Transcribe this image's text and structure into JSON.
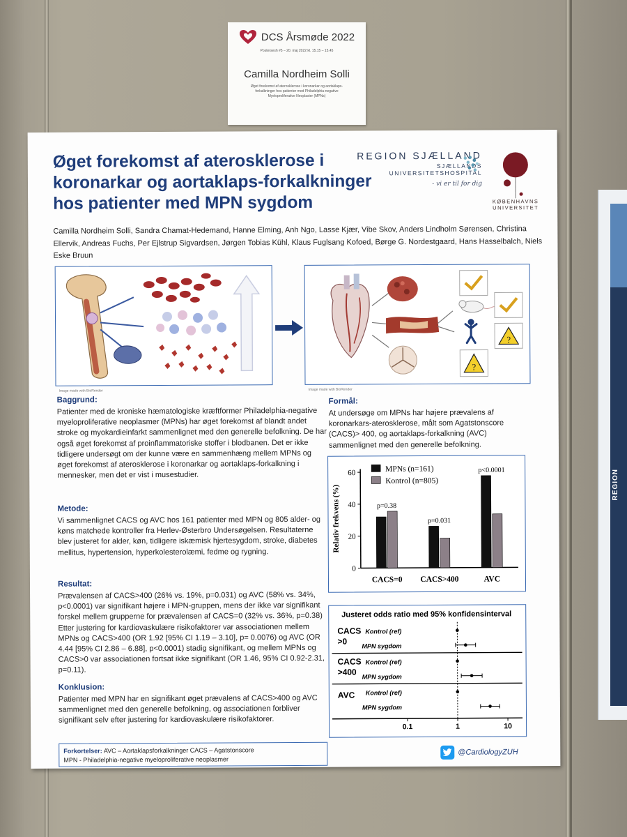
{
  "card": {
    "title": "DCS Årsmøde 2022",
    "subtitle": "Postersesh #5 – 20. maj 2022 kl. 15.15 – 15.45",
    "name": "Camilla Nordheim Solli",
    "desc": "Øget forekomst af aterosklerose i koronarkar og aortaklaps-forkalkninger hos patienter med Philadelphia-negative Myeloproliferative Neoplasier (MPNs)"
  },
  "side_poster": {
    "label": "REGION"
  },
  "poster": {
    "title": "Øget forekomst af aterosklerose i koronarkar og aortaklaps-forkalkninger hos patienter med MPN sygdom",
    "authors": "Camilla Nordheim Solli, Sandra Chamat-Hedemand, Hanne Elming, Anh Ngo, Lasse Kjær, Vibe Skov, Anders Lindholm Sørensen, Christina Ellervik, Andreas Fuchs, Per Ejlstrup Sigvardsen,   Jørgen Tobias Kühl, Klaus Fuglsang Kofoed, Børge G. Nordestgaard, Hans Hasselbalch, Niels Eske Bruun",
    "logo_region": "REGION SJÆLLAND",
    "logo_hospital": "SJÆLLANDS UNIVERSITETSHOSPITAL",
    "logo_tagline": "- vi er til for dig",
    "logo_ku_1": "KØBENHAVNS",
    "logo_ku_2": "UNIVERSITET",
    "fig_caption_1": "Image made with BioRender",
    "fig_caption_2": "Image made with BioRender",
    "baggrund_h": "Baggrund:",
    "baggrund_t": "Patienter med de kroniske hæmatologiske kræftformer Philadelphia-negative myeloproliferative neoplasmer (MPNs) har øget forekomst af blandt andet stroke og myokardieinfarkt sammenlignet med den generelle befolkning. De har også øget forekomst af proinflammatoriske stoffer i blodbanen. Det er ikke tidligere undersøgt om der kunne være en sammenhæng mellem MPNs og øget forekomst af aterosklerose i koronarkar og aortaklaps-forkalkning i mennesker, men det er vist i musestudier.",
    "metode_h": "Metode:",
    "metode_t": "Vi sammenlignet CACS og AVC hos 161 patienter med MPN og 805 alder- og køns matchede kontroller fra Herlev-Østerbro Undersøgelsen. Resultaterne blev justeret for alder, køn, tidligere iskæmisk hjertesygdom, stroke, diabetes mellitus, hypertension, hyperkolesterolæmi, fedme og rygning.",
    "resultat_h": "Resultat:",
    "resultat_t": "Prævalensen af CACS>400 (26% vs. 19%, p=0.031) og AVC (58% vs. 34%, p<0.0001) var signifikant højere i MPN-gruppen, mens der ikke var signifikant forskel mellem grupperne for prævalensen af CACS=0 (32% vs. 36%, p=0.38) Etter justering for kardiovaskulære risikofaktorer var associationen mellem MPNs og CACS>400 (OR 1.92 [95% CI 1.19 – 3.10], p= 0.0076) og AVC (OR 4.44 [95% CI 2.86 – 6.88], p<0.0001) stadig signifikant, og mellem MPNs og CACS>0 var associationen fortsat ikke signifikant (OR 1.46, 95% CI 0.92-2.31, p=0.11).",
    "konklusion_h": "Konklusion:",
    "konklusion_t": "Patienter med MPN har en signifikant øget prævalens af CACS>400 og AVC sammenlignet med den generelle befolkning, og associationen forbliver signifikant selv efter justering for kardiovaskulære risikofaktorer.",
    "formaal_h": "Formål:",
    "formaal_t": "At undersøge om MPNs har højere prævalens af koronarkars-aterosklerose, målt som Agatstonscore (CACS)> 400, og aortaklaps-forkalkning (AVC) sammenlignet med den generelle befolkning.",
    "abbr_label": "Forkortelser:",
    "abbr_line1": "AVC – Aortaklapsforkalkninger   CACS – Agatstonscore",
    "abbr_line2": "MPN -  Philadelphia-negative myeloproliferative neoplasmer",
    "twitter": "@CardiologyZUH"
  },
  "colors": {
    "title": "#1f3d7a",
    "frame": "#3b6ab2",
    "mpn": "#111111",
    "kontrol": "#8c8088"
  },
  "chart_data": [
    {
      "type": "bar",
      "categories": [
        "CACS=0",
        "CACS>400",
        "AVC"
      ],
      "series": [
        {
          "name": "MPNs (n=161)",
          "values": [
            32,
            26,
            57.5
          ]
        },
        {
          "name": "Kontrol (n=805)",
          "values": [
            35.5,
            18.5,
            33.5
          ]
        }
      ],
      "p_labels": [
        "p=0.38",
        "p=0.031",
        "p<0.0001"
      ],
      "ylabel": "Relativ frekvens (%)",
      "yticks": [
        "0",
        "20",
        "40",
        "60"
      ],
      "ylim": [
        0,
        62
      ],
      "legend": "top-left"
    },
    {
      "type": "forest",
      "title": "Justeret odds ratio med 95% konfidensinterval",
      "groups": [
        {
          "label": "CACS >0",
          "rows": [
            {
              "label": "Kontrol (ref)",
              "or": 1,
              "lo": 1,
              "hi": 1
            },
            {
              "label": "MPN sygdom",
              "or": 1.46,
              "lo": 0.92,
              "hi": 2.31
            }
          ]
        },
        {
          "label": "CACS >400",
          "rows": [
            {
              "label": "Kontrol (ref)",
              "or": 1,
              "lo": 1,
              "hi": 1
            },
            {
              "label": "MPN sygdom",
              "or": 1.92,
              "lo": 1.19,
              "hi": 3.1
            }
          ]
        },
        {
          "label": "AVC",
          "rows": [
            {
              "label": "Kontrol (ref)",
              "or": 1,
              "lo": 1,
              "hi": 1
            },
            {
              "label": "MPN sygdom",
              "or": 4.44,
              "lo": 2.86,
              "hi": 6.88
            }
          ]
        }
      ],
      "xticks": [
        "0.1",
        "1",
        "10"
      ],
      "xscale": "log",
      "xlim": [
        0.1,
        10
      ]
    }
  ]
}
